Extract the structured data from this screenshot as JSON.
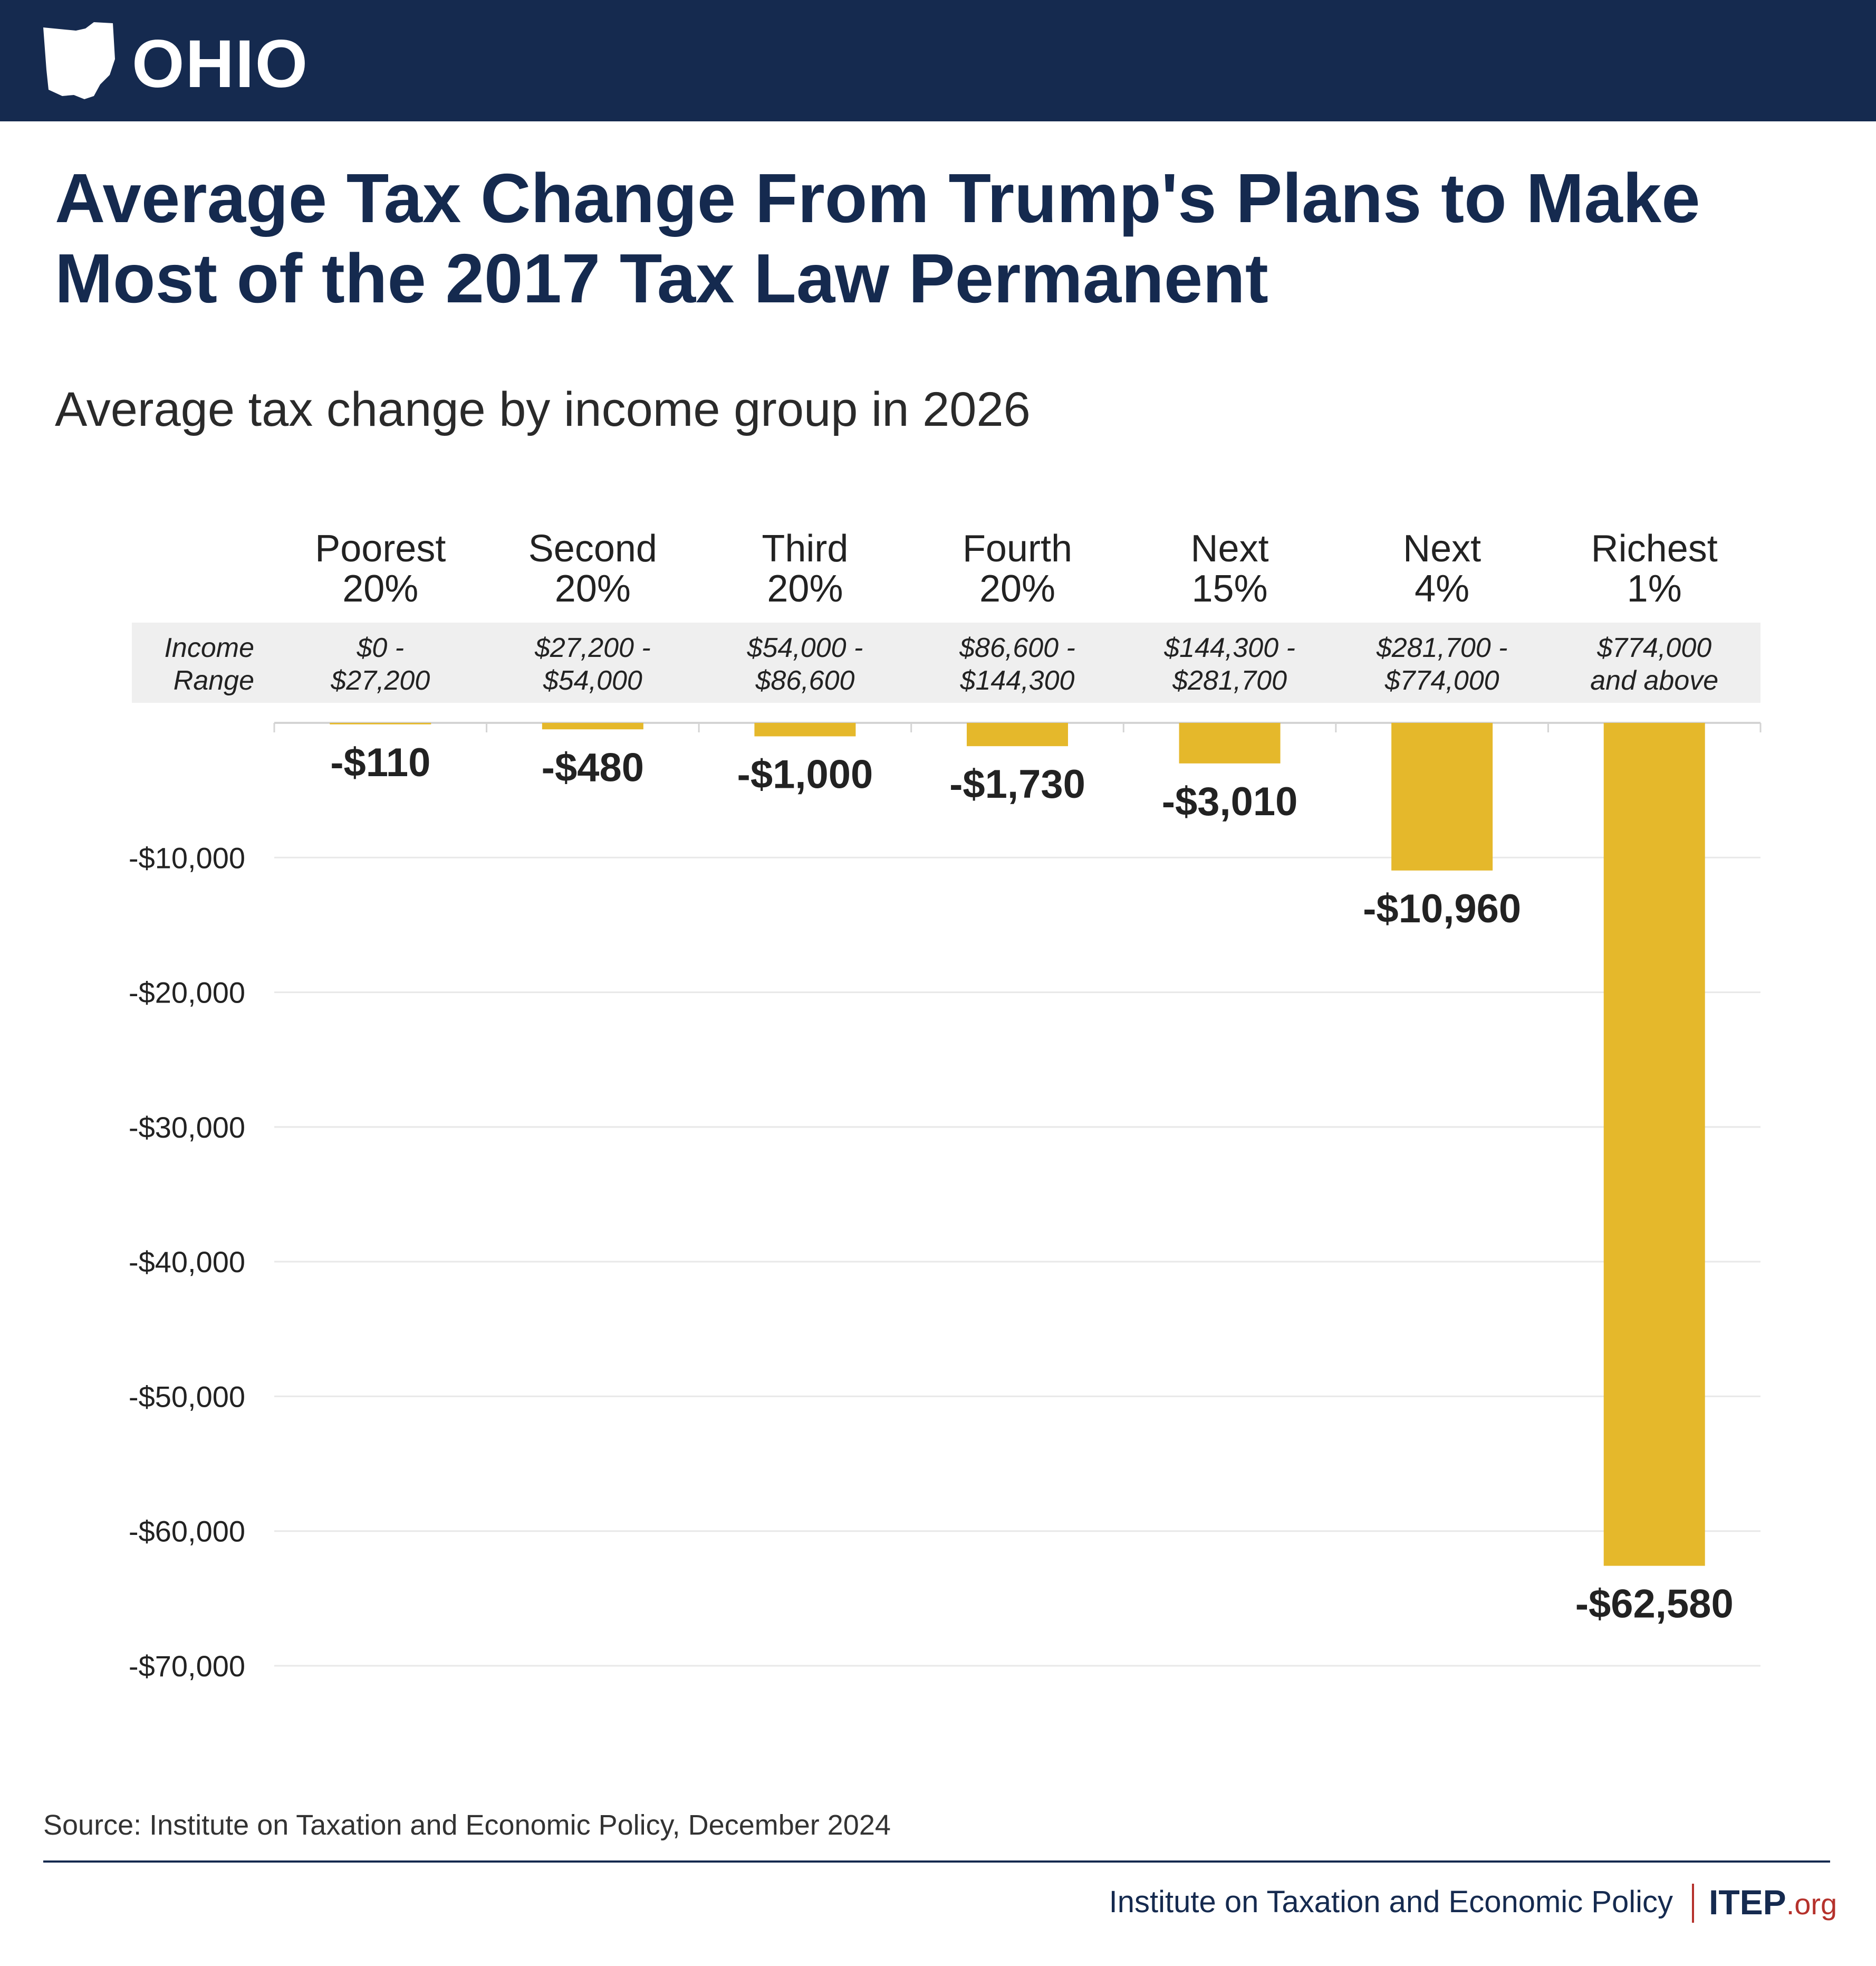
{
  "header": {
    "state": "OHIO",
    "state_icon": "ohio-outline-icon"
  },
  "title": "Average Tax Change From Trump's Plans to Make Most of the 2017 Tax Law Permanent",
  "subtitle": "Average tax change by income group in 2026",
  "income_range_label": [
    "Income",
    "Range"
  ],
  "source": "Source: Institute on Taxation and Economic Policy, December 2024",
  "footer": {
    "org_name": "Institute on Taxation and Economic Policy",
    "brand": "ITEP",
    "brand_suffix": ".org"
  },
  "colors": {
    "bar": "#E5B82B",
    "header": "#152A4F",
    "band": "#EFEFEF",
    "accent": "#B5322C"
  },
  "chart_data": {
    "type": "bar",
    "categories": [
      {
        "group": [
          "Poorest",
          "20%"
        ],
        "range": [
          "$0 -",
          "$27,200"
        ]
      },
      {
        "group": [
          "Second",
          "20%"
        ],
        "range": [
          "$27,200 -",
          "$54,000"
        ]
      },
      {
        "group": [
          "Third",
          "20%"
        ],
        "range": [
          "$54,000 -",
          "$86,600"
        ]
      },
      {
        "group": [
          "Fourth",
          "20%"
        ],
        "range": [
          "$86,600 -",
          "$144,300"
        ]
      },
      {
        "group": [
          "Next",
          "15%"
        ],
        "range": [
          "$144,300 -",
          "$281,700"
        ]
      },
      {
        "group": [
          "Next",
          "4%"
        ],
        "range": [
          "$281,700 -",
          "$774,000"
        ]
      },
      {
        "group": [
          "Richest",
          "1%"
        ],
        "range": [
          "$774,000",
          "and above"
        ]
      }
    ],
    "values": [
      -110,
      -480,
      -1000,
      -1730,
      -3010,
      -10960,
      -62580
    ],
    "value_labels": [
      "-$110",
      "-$480",
      "-$1,000",
      "-$1,730",
      "-$3,010",
      "-$10,960",
      "-$62,580"
    ],
    "yticks": [
      -10000,
      -20000,
      -30000,
      -40000,
      -50000,
      -60000,
      -70000
    ],
    "ytick_labels": [
      "-$10,000",
      "-$20,000",
      "-$30,000",
      "-$40,000",
      "-$50,000",
      "-$60,000",
      "-$70,000"
    ],
    "ylim": [
      -70000,
      0
    ],
    "grid": true
  }
}
